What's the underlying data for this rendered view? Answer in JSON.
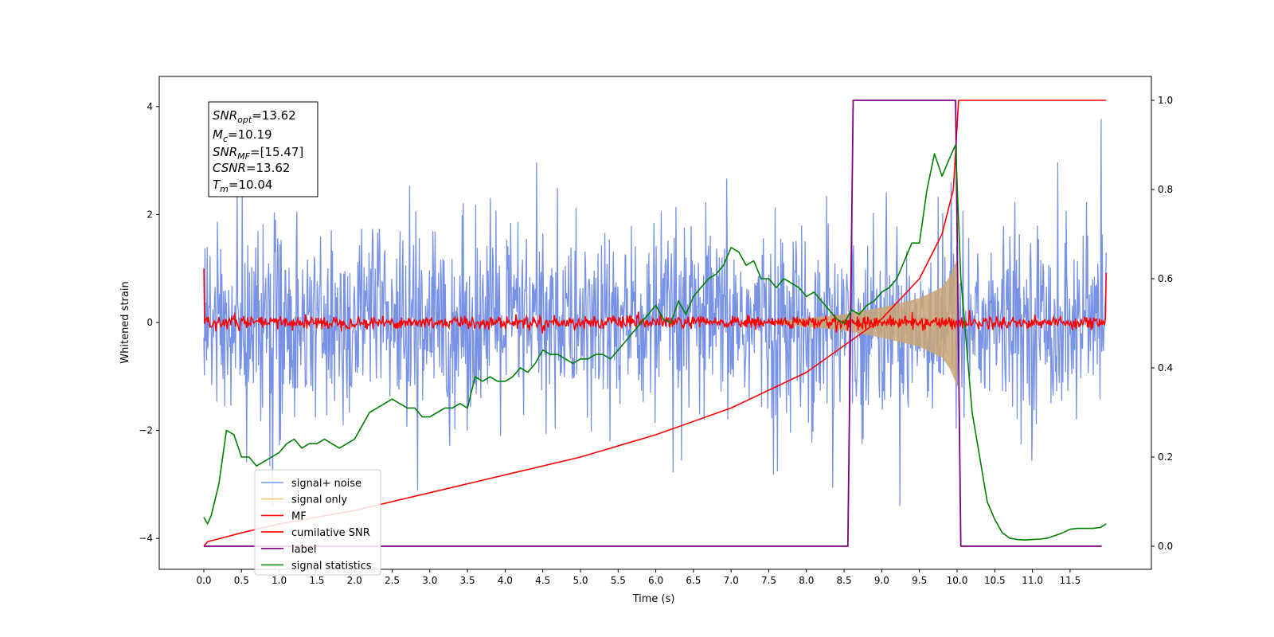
{
  "chart_data": {
    "type": "line",
    "title": "",
    "xlabel": "Time (s)",
    "ylabel": "Whitened strain",
    "xlim": [
      -0.6,
      12.55
    ],
    "ylim": [
      -4.55,
      4.55
    ],
    "y2lim": [
      -0.05,
      1.05
    ],
    "x_ticks": [
      "0.0",
      "0.5",
      "1.0",
      "1.5",
      "2.0",
      "2.5",
      "3.0",
      "3.5",
      "4.0",
      "4.5",
      "5.0",
      "5.5",
      "6.0",
      "6.5",
      "7.0",
      "7.5",
      "8.0",
      "8.5",
      "9.0",
      "9.5",
      "10.0",
      "10.5",
      "11.0",
      "11.5"
    ],
    "y_ticks": [
      "4",
      "2",
      "0",
      "−2",
      "−4"
    ],
    "y2_ticks": [
      "1.0",
      "0.8",
      "0.6",
      "0.4",
      "0.2",
      "0.0"
    ],
    "grid": false,
    "legend_position": "lower-left",
    "legend": [
      {
        "label": "signal+ noise",
        "color": "#7892e6"
      },
      {
        "label": "signal only",
        "color": "#f5c97a"
      },
      {
        "label": "MF",
        "color": "#ff0000"
      },
      {
        "label": "cumilative SNR",
        "color": "#ff0000"
      },
      {
        "label": "label",
        "color": "#800080"
      },
      {
        "label": "signal statistics",
        "color": "#008000"
      }
    ],
    "annotation": {
      "snr_opt": {
        "var": "SNR",
        "sub": "opt",
        "value": "=13.62"
      },
      "mc": {
        "var": "M",
        "sub": "c",
        "value": "=10.19"
      },
      "snr_mf": {
        "var": "SNR",
        "sub": "MF",
        "value": "=[15.47]"
      },
      "csnr": {
        "var": "CSNR",
        "sub": "",
        "value": "=13.62"
      },
      "tm": {
        "var": "T",
        "sub": "m",
        "value": "=10.04"
      }
    },
    "series": [
      {
        "name": "signal+ noise",
        "axis": "left",
        "color": "#7892e6",
        "x_range": [
          0,
          11.98
        ],
        "typical_envelope": 1.8,
        "peak_max": 4.1,
        "peak_min": -3.4
      },
      {
        "name": "signal only",
        "axis": "left",
        "color": "#f5c97a",
        "x": [
          7.5,
          8.0,
          8.5,
          9.0,
          9.5,
          9.8,
          9.9,
          9.98,
          10.0
        ],
        "amplitude": [
          0.02,
          0.08,
          0.15,
          0.28,
          0.45,
          0.65,
          0.85,
          1.1,
          1.2
        ]
      },
      {
        "name": "MF",
        "axis": "left",
        "color": "#ff0000",
        "x_range": [
          0,
          11.98
        ],
        "start_value": 1.0,
        "end_value": 0.92,
        "noise_amplitude": 0.12
      },
      {
        "name": "cumilative SNR",
        "axis": "right",
        "color": "#ff0000",
        "x": [
          0,
          0.05,
          0.5,
          1.0,
          2.0,
          3.0,
          4.0,
          5.0,
          6.0,
          7.0,
          8.0,
          8.5,
          9.0,
          9.5,
          9.8,
          9.95,
          10.02,
          10.05,
          11.98
        ],
        "y": [
          0.0,
          0.01,
          0.03,
          0.05,
          0.08,
          0.12,
          0.16,
          0.2,
          0.25,
          0.31,
          0.39,
          0.45,
          0.51,
          0.6,
          0.7,
          0.8,
          1.0,
          1.0,
          1.0
        ]
      },
      {
        "name": "label",
        "axis": "right",
        "color": "#800080",
        "x": [
          0,
          8.55,
          8.62,
          9.98,
          10.05,
          11.92
        ],
        "y": [
          0,
          0,
          1,
          1,
          0,
          0
        ]
      },
      {
        "name": "signal statistics",
        "axis": "right",
        "color": "#008000",
        "x": [
          0,
          0.05,
          0.1,
          0.2,
          0.3,
          0.4,
          0.5,
          0.6,
          0.7,
          0.8,
          0.9,
          1.0,
          1.1,
          1.2,
          1.3,
          1.4,
          1.5,
          1.6,
          1.7,
          1.8,
          1.9,
          2.0,
          2.1,
          2.2,
          2.3,
          2.4,
          2.5,
          2.6,
          2.7,
          2.8,
          2.9,
          3.0,
          3.1,
          3.2,
          3.3,
          3.4,
          3.5,
          3.6,
          3.7,
          3.8,
          3.9,
          4.0,
          4.1,
          4.2,
          4.3,
          4.4,
          4.5,
          4.6,
          4.7,
          4.8,
          4.9,
          5.0,
          5.1,
          5.2,
          5.3,
          5.4,
          5.5,
          5.6,
          5.7,
          5.8,
          5.9,
          6.0,
          6.1,
          6.2,
          6.3,
          6.4,
          6.5,
          6.6,
          6.7,
          6.8,
          6.9,
          7.0,
          7.1,
          7.2,
          7.3,
          7.4,
          7.5,
          7.6,
          7.7,
          7.8,
          7.9,
          8.0,
          8.1,
          8.2,
          8.3,
          8.4,
          8.5,
          8.6,
          8.7,
          8.8,
          8.9,
          9.0,
          9.1,
          9.2,
          9.3,
          9.4,
          9.5,
          9.6,
          9.7,
          9.8,
          9.9,
          9.98,
          10.05,
          10.1,
          10.2,
          10.3,
          10.4,
          10.5,
          10.6,
          10.7,
          10.8,
          10.9,
          11.0,
          11.1,
          11.2,
          11.3,
          11.4,
          11.5,
          11.6,
          11.7,
          11.8,
          11.9,
          11.98
        ],
        "y": [
          0.065,
          0.05,
          0.07,
          0.14,
          0.26,
          0.25,
          0.2,
          0.2,
          0.18,
          0.19,
          0.2,
          0.21,
          0.23,
          0.24,
          0.22,
          0.23,
          0.23,
          0.24,
          0.23,
          0.22,
          0.23,
          0.24,
          0.27,
          0.3,
          0.31,
          0.32,
          0.33,
          0.32,
          0.31,
          0.31,
          0.29,
          0.29,
          0.3,
          0.31,
          0.31,
          0.32,
          0.31,
          0.38,
          0.37,
          0.38,
          0.37,
          0.37,
          0.38,
          0.4,
          0.39,
          0.41,
          0.44,
          0.43,
          0.43,
          0.42,
          0.41,
          0.42,
          0.42,
          0.43,
          0.43,
          0.42,
          0.44,
          0.46,
          0.48,
          0.5,
          0.52,
          0.54,
          0.51,
          0.5,
          0.55,
          0.52,
          0.56,
          0.58,
          0.6,
          0.61,
          0.63,
          0.67,
          0.66,
          0.63,
          0.64,
          0.6,
          0.6,
          0.58,
          0.6,
          0.59,
          0.58,
          0.56,
          0.57,
          0.55,
          0.53,
          0.51,
          0.5,
          0.53,
          0.52,
          0.54,
          0.55,
          0.57,
          0.58,
          0.6,
          0.64,
          0.68,
          0.68,
          0.8,
          0.88,
          0.83,
          0.87,
          0.9,
          0.6,
          0.5,
          0.3,
          0.2,
          0.1,
          0.06,
          0.03,
          0.018,
          0.015,
          0.014,
          0.015,
          0.016,
          0.018,
          0.024,
          0.03,
          0.038,
          0.04,
          0.04,
          0.04,
          0.042,
          0.05
        ]
      }
    ]
  }
}
